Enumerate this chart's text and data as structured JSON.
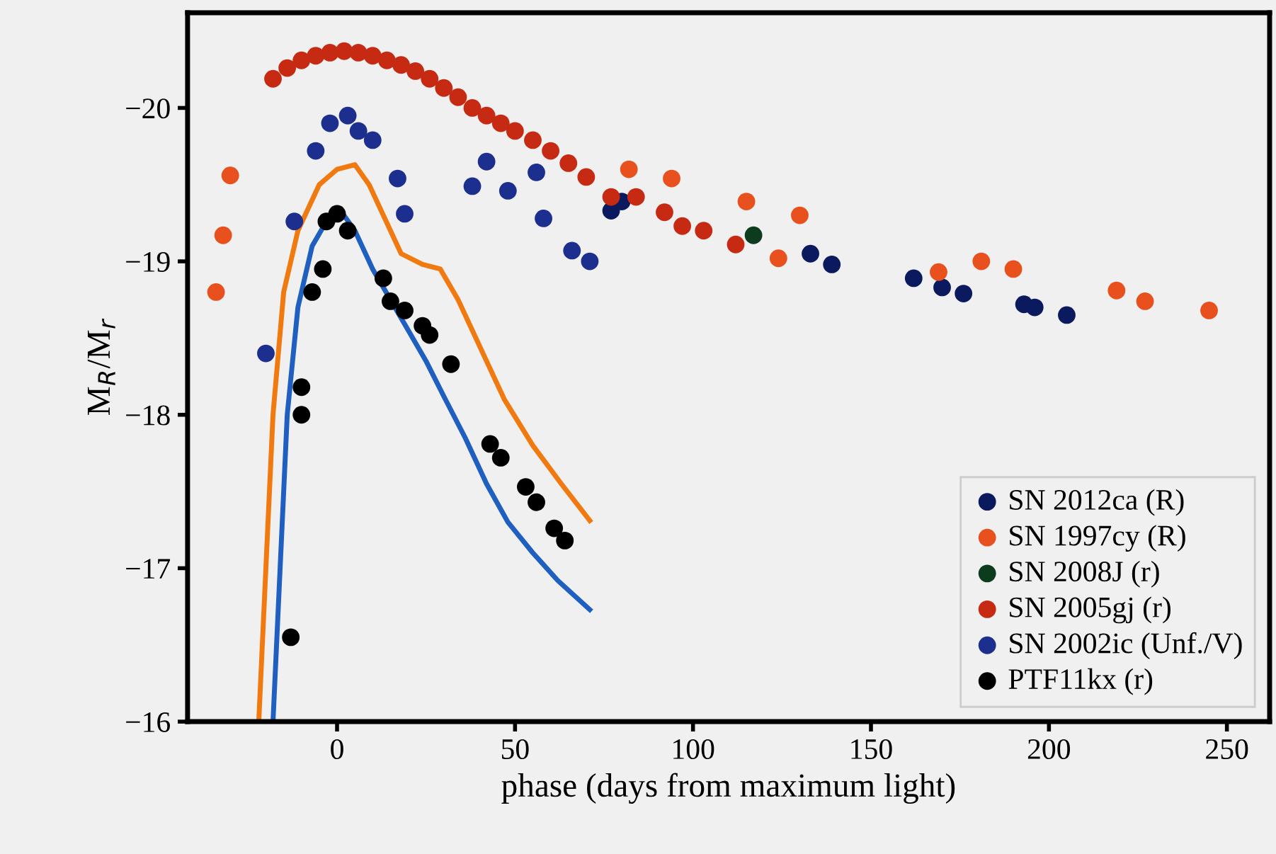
{
  "chart_data": {
    "type": "scatter",
    "xlabel": "phase (days from maximum light)",
    "ylabel": "M$_{R}$/M$_{r}$",
    "xlim": [
      -42,
      262
    ],
    "ylim": [
      -16,
      -20.62
    ],
    "xticks": [
      0,
      50,
      100,
      150,
      200,
      250
    ],
    "yticks": [
      {
        "value": -20,
        "label": "−20"
      },
      {
        "value": -19,
        "label": "−19"
      },
      {
        "value": -18,
        "label": "−18"
      },
      {
        "value": -17,
        "label": "−17"
      },
      {
        "value": -16,
        "label": "−16"
      }
    ],
    "grid": false,
    "legend": "bottom right",
    "marker": "circle",
    "series": [
      {
        "name": "SN 2012ca (R)",
        "color": "#0b1a5e",
        "x": [
          77,
          80,
          133,
          139,
          162,
          170,
          176,
          193,
          196,
          205
        ],
        "values": [
          -19.33,
          -19.39,
          -19.05,
          -18.98,
          -18.89,
          -18.83,
          -18.79,
          -18.72,
          -18.7,
          -18.65
        ]
      },
      {
        "name": "SN 1997cy (R)",
        "color": "#e8501e",
        "x": [
          -34,
          -32,
          -30,
          82,
          94,
          115,
          124,
          130,
          169,
          181,
          190,
          219,
          227,
          245
        ],
        "values": [
          -18.8,
          -19.17,
          -19.56,
          -19.6,
          -19.54,
          -19.39,
          -19.02,
          -19.3,
          -18.93,
          -19.0,
          -18.95,
          -18.81,
          -18.74,
          -18.68
        ]
      },
      {
        "name": "SN 2008J (r)",
        "color": "#0d3b1e",
        "x": [
          117
        ],
        "values": [
          -19.17
        ]
      },
      {
        "name": "SN 2005gj (r)",
        "color": "#c62a12",
        "x": [
          -18,
          -14,
          -10,
          -6,
          -2,
          2,
          6,
          10,
          14,
          18,
          22,
          26,
          30,
          34,
          38,
          42,
          46,
          50,
          55,
          60,
          65,
          70,
          77,
          84,
          92,
          97,
          103,
          112
        ],
        "values": [
          -20.19,
          -20.26,
          -20.31,
          -20.34,
          -20.36,
          -20.37,
          -20.36,
          -20.34,
          -20.31,
          -20.28,
          -20.24,
          -20.19,
          -20.13,
          -20.07,
          -20.0,
          -19.95,
          -19.9,
          -19.85,
          -19.79,
          -19.72,
          -19.64,
          -19.55,
          -19.42,
          -19.42,
          -19.32,
          -19.23,
          -19.2,
          -19.11
        ]
      },
      {
        "name": "SN 2002ic (Unf./V)",
        "color": "#1c2f8f",
        "x": [
          -20,
          -12,
          -6,
          -2,
          3,
          6,
          10,
          17,
          19,
          38,
          42,
          48,
          56,
          58,
          66,
          71
        ],
        "values": [
          -18.4,
          -19.26,
          -19.72,
          -19.9,
          -19.95,
          -19.85,
          -19.79,
          -19.54,
          -19.31,
          -19.49,
          -19.65,
          -19.46,
          -19.58,
          -19.28,
          -19.07,
          -19.0
        ]
      },
      {
        "name": "PTF11kx (r)",
        "color": "#000000",
        "x": [
          -13,
          -10,
          -10,
          -7,
          -4,
          -3,
          0,
          3,
          13,
          15,
          19,
          24,
          26,
          32,
          43,
          46,
          53,
          56,
          61,
          64
        ],
        "values": [
          -16.55,
          -18.0,
          -18.18,
          -18.8,
          -18.95,
          -19.26,
          -19.31,
          -19.2,
          -18.89,
          -18.74,
          -18.68,
          -18.58,
          -18.52,
          -18.33,
          -17.81,
          -17.72,
          -17.53,
          -17.43,
          -17.26,
          -17.18
        ]
      },
      {
        "type": "line",
        "marker": "none",
        "color": "#f07a10",
        "x": [
          -22,
          -20,
          -18,
          -15,
          -11,
          -5,
          0,
          5,
          9,
          13,
          18,
          24,
          29,
          34,
          40,
          47,
          55,
          63,
          71
        ],
        "values": [
          -16.0,
          -17.0,
          -18.0,
          -18.8,
          -19.2,
          -19.5,
          -19.6,
          -19.63,
          -19.5,
          -19.3,
          -19.05,
          -18.98,
          -18.95,
          -18.75,
          -18.45,
          -18.1,
          -17.8,
          -17.55,
          -17.31
        ]
      },
      {
        "type": "line",
        "marker": "none",
        "color": "#1f5fc0",
        "x": [
          -18,
          -16,
          -14,
          -11,
          -7,
          -2,
          1,
          5,
          10,
          15,
          20,
          25,
          30,
          36,
          42,
          48,
          55,
          62,
          71
        ],
        "values": [
          -16.0,
          -17.0,
          -18.0,
          -18.7,
          -19.1,
          -19.3,
          -19.33,
          -19.2,
          -18.95,
          -18.75,
          -18.55,
          -18.35,
          -18.12,
          -17.85,
          -17.55,
          -17.3,
          -17.1,
          -16.92,
          -16.73
        ]
      }
    ]
  }
}
